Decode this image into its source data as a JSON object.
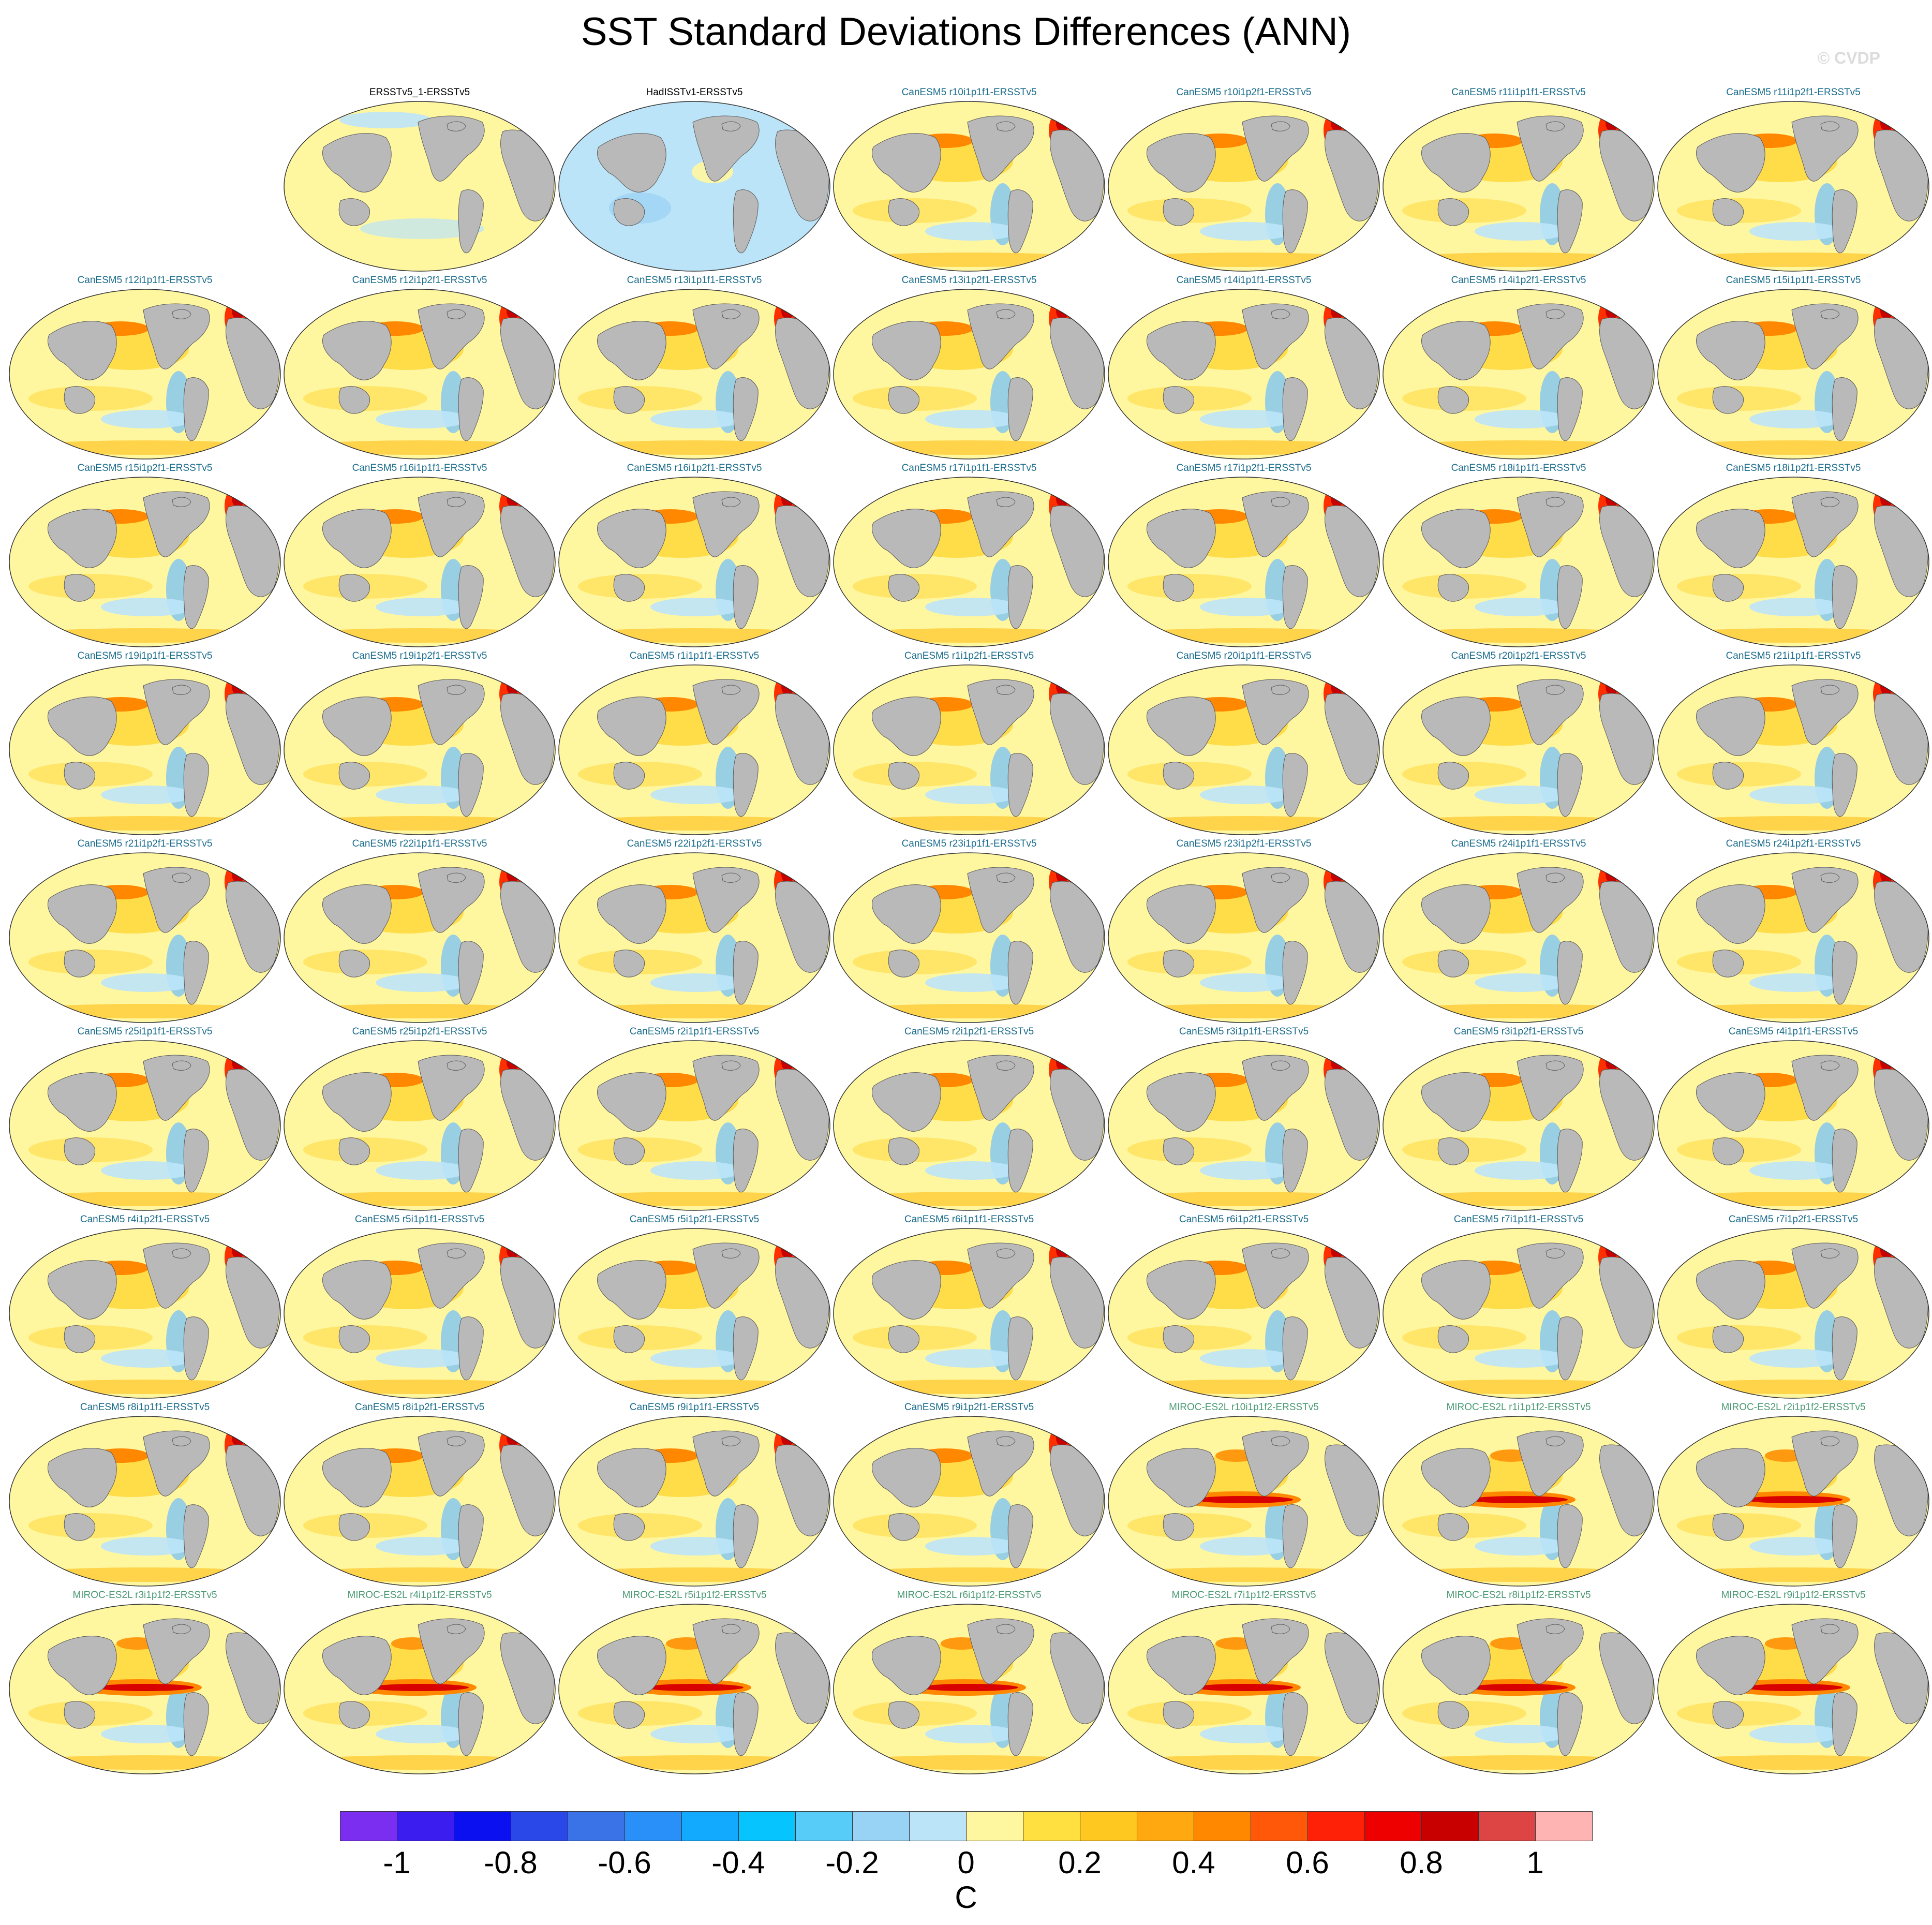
{
  "title": "SST Standard Deviations Differences (ANN)",
  "watermark": "© CVDP",
  "colors": {
    "obs_label": "#000000",
    "canesm5_label": "#1a6c8c",
    "miroc_label": "#4a9a73",
    "land": "#b9b9b9",
    "neutral_positive": "#fff6a0",
    "neutral_negative": "#bce4f8"
  },
  "colorbar": {
    "unit": "C",
    "colors": [
      "#7b2df0",
      "#3b1df0",
      "#0a10f0",
      "#2a48e8",
      "#3a72e8",
      "#2890f8",
      "#12aafe",
      "#06c4fe",
      "#58ccf8",
      "#98d2f4",
      "#bce4f8",
      "#fff6a0",
      "#ffe040",
      "#ffc820",
      "#ffa810",
      "#ff8800",
      "#ff5808",
      "#ff2008",
      "#ee0000",
      "#c80000",
      "#dd4444",
      "#ffb4b4"
    ],
    "tick_labels": [
      "-1",
      "-0.8",
      "-0.6",
      "-0.4",
      "-0.2",
      "0",
      "0.2",
      "0.4",
      "0.6",
      "0.8",
      "1"
    ]
  },
  "panels": [
    {
      "label": "ERSSTv5_1-ERSSTv5",
      "group": "obs",
      "row": 0,
      "col": 1,
      "style": "obs-light"
    },
    {
      "label": "HadISSTv1-ERSSTv5",
      "group": "obs",
      "row": 0,
      "col": 2,
      "style": "obs-negative"
    },
    {
      "label": "CanESM5 r10i1p1f1-ERSSTv5",
      "group": "canesm5",
      "row": 0,
      "col": 3,
      "style": "canesm"
    },
    {
      "label": "CanESM5 r10i1p2f1-ERSSTv5",
      "group": "canesm5",
      "row": 0,
      "col": 4,
      "style": "canesm"
    },
    {
      "label": "CanESM5 r11i1p1f1-ERSSTv5",
      "group": "canesm5",
      "row": 0,
      "col": 5,
      "style": "canesm"
    },
    {
      "label": "CanESM5 r11i1p2f1-ERSSTv5",
      "group": "canesm5",
      "row": 0,
      "col": 6,
      "style": "canesm"
    },
    {
      "label": "CanESM5 r12i1p1f1-ERSSTv5",
      "group": "canesm5",
      "row": 1,
      "col": 0,
      "style": "canesm"
    },
    {
      "label": "CanESM5 r12i1p2f1-ERSSTv5",
      "group": "canesm5",
      "row": 1,
      "col": 1,
      "style": "canesm"
    },
    {
      "label": "CanESM5 r13i1p1f1-ERSSTv5",
      "group": "canesm5",
      "row": 1,
      "col": 2,
      "style": "canesm"
    },
    {
      "label": "CanESM5 r13i1p2f1-ERSSTv5",
      "group": "canesm5",
      "row": 1,
      "col": 3,
      "style": "canesm"
    },
    {
      "label": "CanESM5 r14i1p1f1-ERSSTv5",
      "group": "canesm5",
      "row": 1,
      "col": 4,
      "style": "canesm"
    },
    {
      "label": "CanESM5 r14i1p2f1-ERSSTv5",
      "group": "canesm5",
      "row": 1,
      "col": 5,
      "style": "canesm"
    },
    {
      "label": "CanESM5 r15i1p1f1-ERSSTv5",
      "group": "canesm5",
      "row": 1,
      "col": 6,
      "style": "canesm"
    },
    {
      "label": "CanESM5 r15i1p2f1-ERSSTv5",
      "group": "canesm5",
      "row": 2,
      "col": 0,
      "style": "canesm"
    },
    {
      "label": "CanESM5 r16i1p1f1-ERSSTv5",
      "group": "canesm5",
      "row": 2,
      "col": 1,
      "style": "canesm"
    },
    {
      "label": "CanESM5 r16i1p2f1-ERSSTv5",
      "group": "canesm5",
      "row": 2,
      "col": 2,
      "style": "canesm"
    },
    {
      "label": "CanESM5 r17i1p1f1-ERSSTv5",
      "group": "canesm5",
      "row": 2,
      "col": 3,
      "style": "canesm"
    },
    {
      "label": "CanESM5 r17i1p2f1-ERSSTv5",
      "group": "canesm5",
      "row": 2,
      "col": 4,
      "style": "canesm"
    },
    {
      "label": "CanESM5 r18i1p1f1-ERSSTv5",
      "group": "canesm5",
      "row": 2,
      "col": 5,
      "style": "canesm"
    },
    {
      "label": "CanESM5 r18i1p2f1-ERSSTv5",
      "group": "canesm5",
      "row": 2,
      "col": 6,
      "style": "canesm"
    },
    {
      "label": "CanESM5 r19i1p1f1-ERSSTv5",
      "group": "canesm5",
      "row": 3,
      "col": 0,
      "style": "canesm"
    },
    {
      "label": "CanESM5 r19i1p2f1-ERSSTv5",
      "group": "canesm5",
      "row": 3,
      "col": 1,
      "style": "canesm"
    },
    {
      "label": "CanESM5 r1i1p1f1-ERSSTv5",
      "group": "canesm5",
      "row": 3,
      "col": 2,
      "style": "canesm"
    },
    {
      "label": "CanESM5 r1i1p2f1-ERSSTv5",
      "group": "canesm5",
      "row": 3,
      "col": 3,
      "style": "canesm"
    },
    {
      "label": "CanESM5 r20i1p1f1-ERSSTv5",
      "group": "canesm5",
      "row": 3,
      "col": 4,
      "style": "canesm"
    },
    {
      "label": "CanESM5 r20i1p2f1-ERSSTv5",
      "group": "canesm5",
      "row": 3,
      "col": 5,
      "style": "canesm"
    },
    {
      "label": "CanESM5 r21i1p1f1-ERSSTv5",
      "group": "canesm5",
      "row": 3,
      "col": 6,
      "style": "canesm"
    },
    {
      "label": "CanESM5 r21i1p2f1-ERSSTv5",
      "group": "canesm5",
      "row": 4,
      "col": 0,
      "style": "canesm"
    },
    {
      "label": "CanESM5 r22i1p1f1-ERSSTv5",
      "group": "canesm5",
      "row": 4,
      "col": 1,
      "style": "canesm"
    },
    {
      "label": "CanESM5 r22i1p2f1-ERSSTv5",
      "group": "canesm5",
      "row": 4,
      "col": 2,
      "style": "canesm"
    },
    {
      "label": "CanESM5 r23i1p1f1-ERSSTv5",
      "group": "canesm5",
      "row": 4,
      "col": 3,
      "style": "canesm"
    },
    {
      "label": "CanESM5 r23i1p2f1-ERSSTv5",
      "group": "canesm5",
      "row": 4,
      "col": 4,
      "style": "canesm"
    },
    {
      "label": "CanESM5 r24i1p1f1-ERSSTv5",
      "group": "canesm5",
      "row": 4,
      "col": 5,
      "style": "canesm"
    },
    {
      "label": "CanESM5 r24i1p2f1-ERSSTv5",
      "group": "canesm5",
      "row": 4,
      "col": 6,
      "style": "canesm"
    },
    {
      "label": "CanESM5 r25i1p1f1-ERSSTv5",
      "group": "canesm5",
      "row": 5,
      "col": 0,
      "style": "canesm"
    },
    {
      "label": "CanESM5 r25i1p2f1-ERSSTv5",
      "group": "canesm5",
      "row": 5,
      "col": 1,
      "style": "canesm"
    },
    {
      "label": "CanESM5 r2i1p1f1-ERSSTv5",
      "group": "canesm5",
      "row": 5,
      "col": 2,
      "style": "canesm"
    },
    {
      "label": "CanESM5 r2i1p2f1-ERSSTv5",
      "group": "canesm5",
      "row": 5,
      "col": 3,
      "style": "canesm"
    },
    {
      "label": "CanESM5 r3i1p1f1-ERSSTv5",
      "group": "canesm5",
      "row": 5,
      "col": 4,
      "style": "canesm"
    },
    {
      "label": "CanESM5 r3i1p2f1-ERSSTv5",
      "group": "canesm5",
      "row": 5,
      "col": 5,
      "style": "canesm"
    },
    {
      "label": "CanESM5 r4i1p1f1-ERSSTv5",
      "group": "canesm5",
      "row": 5,
      "col": 6,
      "style": "canesm"
    },
    {
      "label": "CanESM5 r4i1p2f1-ERSSTv5",
      "group": "canesm5",
      "row": 6,
      "col": 0,
      "style": "canesm"
    },
    {
      "label": "CanESM5 r5i1p1f1-ERSSTv5",
      "group": "canesm5",
      "row": 6,
      "col": 1,
      "style": "canesm"
    },
    {
      "label": "CanESM5 r5i1p2f1-ERSSTv5",
      "group": "canesm5",
      "row": 6,
      "col": 2,
      "style": "canesm"
    },
    {
      "label": "CanESM5 r6i1p1f1-ERSSTv5",
      "group": "canesm5",
      "row": 6,
      "col": 3,
      "style": "canesm"
    },
    {
      "label": "CanESM5 r6i1p2f1-ERSSTv5",
      "group": "canesm5",
      "row": 6,
      "col": 4,
      "style": "canesm"
    },
    {
      "label": "CanESM5 r7i1p1f1-ERSSTv5",
      "group": "canesm5",
      "row": 6,
      "col": 5,
      "style": "canesm"
    },
    {
      "label": "CanESM5 r7i1p2f1-ERSSTv5",
      "group": "canesm5",
      "row": 6,
      "col": 6,
      "style": "canesm"
    },
    {
      "label": "CanESM5 r8i1p1f1-ERSSTv5",
      "group": "canesm5",
      "row": 7,
      "col": 0,
      "style": "canesm"
    },
    {
      "label": "CanESM5 r8i1p2f1-ERSSTv5",
      "group": "canesm5",
      "row": 7,
      "col": 1,
      "style": "canesm"
    },
    {
      "label": "CanESM5 r9i1p1f1-ERSSTv5",
      "group": "canesm5",
      "row": 7,
      "col": 2,
      "style": "canesm"
    },
    {
      "label": "CanESM5 r9i1p2f1-ERSSTv5",
      "group": "canesm5",
      "row": 7,
      "col": 3,
      "style": "canesm"
    },
    {
      "label": "MIROC-ES2L r10i1p1f2-ERSSTv5",
      "group": "miroc",
      "row": 7,
      "col": 4,
      "style": "miroc"
    },
    {
      "label": "MIROC-ES2L r1i1p1f2-ERSSTv5",
      "group": "miroc",
      "row": 7,
      "col": 5,
      "style": "miroc"
    },
    {
      "label": "MIROC-ES2L r2i1p1f2-ERSSTv5",
      "group": "miroc",
      "row": 7,
      "col": 6,
      "style": "miroc"
    },
    {
      "label": "MIROC-ES2L r3i1p1f2-ERSSTv5",
      "group": "miroc",
      "row": 8,
      "col": 0,
      "style": "miroc"
    },
    {
      "label": "MIROC-ES2L r4i1p1f2-ERSSTv5",
      "group": "miroc",
      "row": 8,
      "col": 1,
      "style": "miroc"
    },
    {
      "label": "MIROC-ES2L r5i1p1f2-ERSSTv5",
      "group": "miroc",
      "row": 8,
      "col": 2,
      "style": "miroc"
    },
    {
      "label": "MIROC-ES2L r6i1p1f2-ERSSTv5",
      "group": "miroc",
      "row": 8,
      "col": 3,
      "style": "miroc"
    },
    {
      "label": "MIROC-ES2L r7i1p1f2-ERSSTv5",
      "group": "miroc",
      "row": 8,
      "col": 4,
      "style": "miroc"
    },
    {
      "label": "MIROC-ES2L r8i1p1f2-ERSSTv5",
      "group": "miroc",
      "row": 8,
      "col": 5,
      "style": "miroc"
    },
    {
      "label": "MIROC-ES2L r9i1p1f2-ERSSTv5",
      "group": "miroc",
      "row": 8,
      "col": 6,
      "style": "miroc"
    }
  ]
}
